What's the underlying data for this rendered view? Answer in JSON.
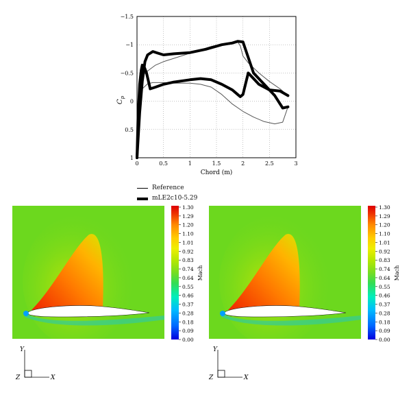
{
  "chart_data": {
    "type": "line",
    "xlabel": "Chord (m)",
    "ylabel": "C",
    "ylabel_sub": "p",
    "xlim": [
      0,
      3
    ],
    "ylim": [
      1,
      -1.5
    ],
    "y_inverted": true,
    "grid": true,
    "xticks": [
      "0",
      "0.5",
      "1",
      "1.5",
      "2",
      "2.5",
      "3"
    ],
    "yticks": [
      "−1.5",
      "−1",
      "−0.5",
      "0",
      "0.5",
      "1"
    ],
    "xtick_values": [
      0,
      0.5,
      1,
      1.5,
      2,
      2.5,
      3
    ],
    "ytick_values": [
      -1.5,
      -1,
      -0.5,
      0,
      0.5,
      1
    ],
    "series": [
      {
        "name": "Reference",
        "width": 1,
        "color": "#555555",
        "x": [
          0,
          0.02,
          0.05,
          0.08,
          0.12,
          0.18,
          0.25,
          0.35,
          0.5,
          0.7,
          1.0,
          1.2,
          1.4,
          1.6,
          1.8,
          1.9,
          1.95,
          2.0,
          2.1,
          2.3,
          2.5,
          2.7,
          2.85
        ],
        "y": [
          1,
          0.2,
          -0.2,
          -0.38,
          -0.46,
          -0.52,
          -0.57,
          -0.64,
          -0.7,
          -0.76,
          -0.85,
          -0.91,
          -0.97,
          -1.01,
          -1.04,
          -1.05,
          -0.98,
          -0.8,
          -0.68,
          -0.5,
          -0.35,
          -0.22,
          -0.1
        ],
        "x_lower": [
          0,
          0.05,
          0.1,
          0.2,
          0.3,
          0.5,
          0.7,
          1.0,
          1.2,
          1.4,
          1.6,
          1.8,
          2.0,
          2.2,
          2.4,
          2.6,
          2.75,
          2.85
        ],
        "y_lower": [
          1,
          -0.05,
          -0.22,
          -0.31,
          -0.33,
          -0.33,
          -0.32,
          -0.32,
          -0.3,
          -0.25,
          -0.12,
          0.05,
          0.18,
          0.28,
          0.36,
          0.4,
          0.37,
          0.1
        ]
      },
      {
        "name": "mLE2c10-5.29",
        "width": 4,
        "color": "#000000",
        "x": [
          0,
          0.02,
          0.05,
          0.08,
          0.1,
          0.13,
          0.18,
          0.25,
          0.35,
          0.5,
          0.7,
          1.0,
          1.2,
          1.4,
          1.6,
          1.8,
          1.9,
          1.95,
          2.0,
          2.1,
          2.3,
          2.5,
          2.7,
          2.85
        ],
        "y": [
          1,
          0.3,
          -0.3,
          -0.55,
          -0.64,
          -0.62,
          -0.5,
          -0.22,
          -0.25,
          -0.3,
          -0.34,
          -0.38,
          -0.4,
          -0.38,
          -0.3,
          -0.2,
          -0.12,
          -0.08,
          -0.12,
          -0.5,
          -0.3,
          -0.2,
          -0.18,
          -0.1
        ],
        "x_lower": [
          0,
          0.05,
          0.1,
          0.15,
          0.2,
          0.3,
          0.4,
          0.5,
          0.7,
          1.0,
          1.3,
          1.6,
          1.8,
          1.9,
          2.0,
          2.2,
          2.4,
          2.6,
          2.75,
          2.85
        ],
        "y_lower": [
          1,
          0.2,
          -0.35,
          -0.7,
          -0.82,
          -0.88,
          -0.85,
          -0.82,
          -0.84,
          -0.86,
          -0.92,
          -1.0,
          -1.03,
          -1.06,
          -1.05,
          -0.5,
          -0.3,
          -0.1,
          0.12,
          0.1
        ]
      }
    ]
  },
  "legend": {
    "items": [
      {
        "label": "Reference",
        "stroke": 1
      },
      {
        "label": "mLE2c10-5.29",
        "stroke": 4
      }
    ]
  },
  "colorbar": {
    "label": "Mach",
    "ticks": [
      "1.30",
      "1.29",
      "1.20",
      "1.10",
      "1.01",
      "0.92",
      "0.83",
      "0.74",
      "0.64",
      "0.55",
      "0.46",
      "0.37",
      "0.28",
      "0.18",
      "0.09",
      "0.00"
    ],
    "colors": [
      "#0000dd",
      "#0066ff",
      "#00bbff",
      "#00eebb",
      "#33dd55",
      "#77dd22",
      "#bbe800",
      "#eeee00",
      "#ffcc00",
      "#ff8800",
      "#ee3300",
      "#dd0000"
    ],
    "field_color": "#6cd81e"
  },
  "axis_indicator": {
    "y": "Y",
    "z": "Z",
    "x": "X"
  }
}
